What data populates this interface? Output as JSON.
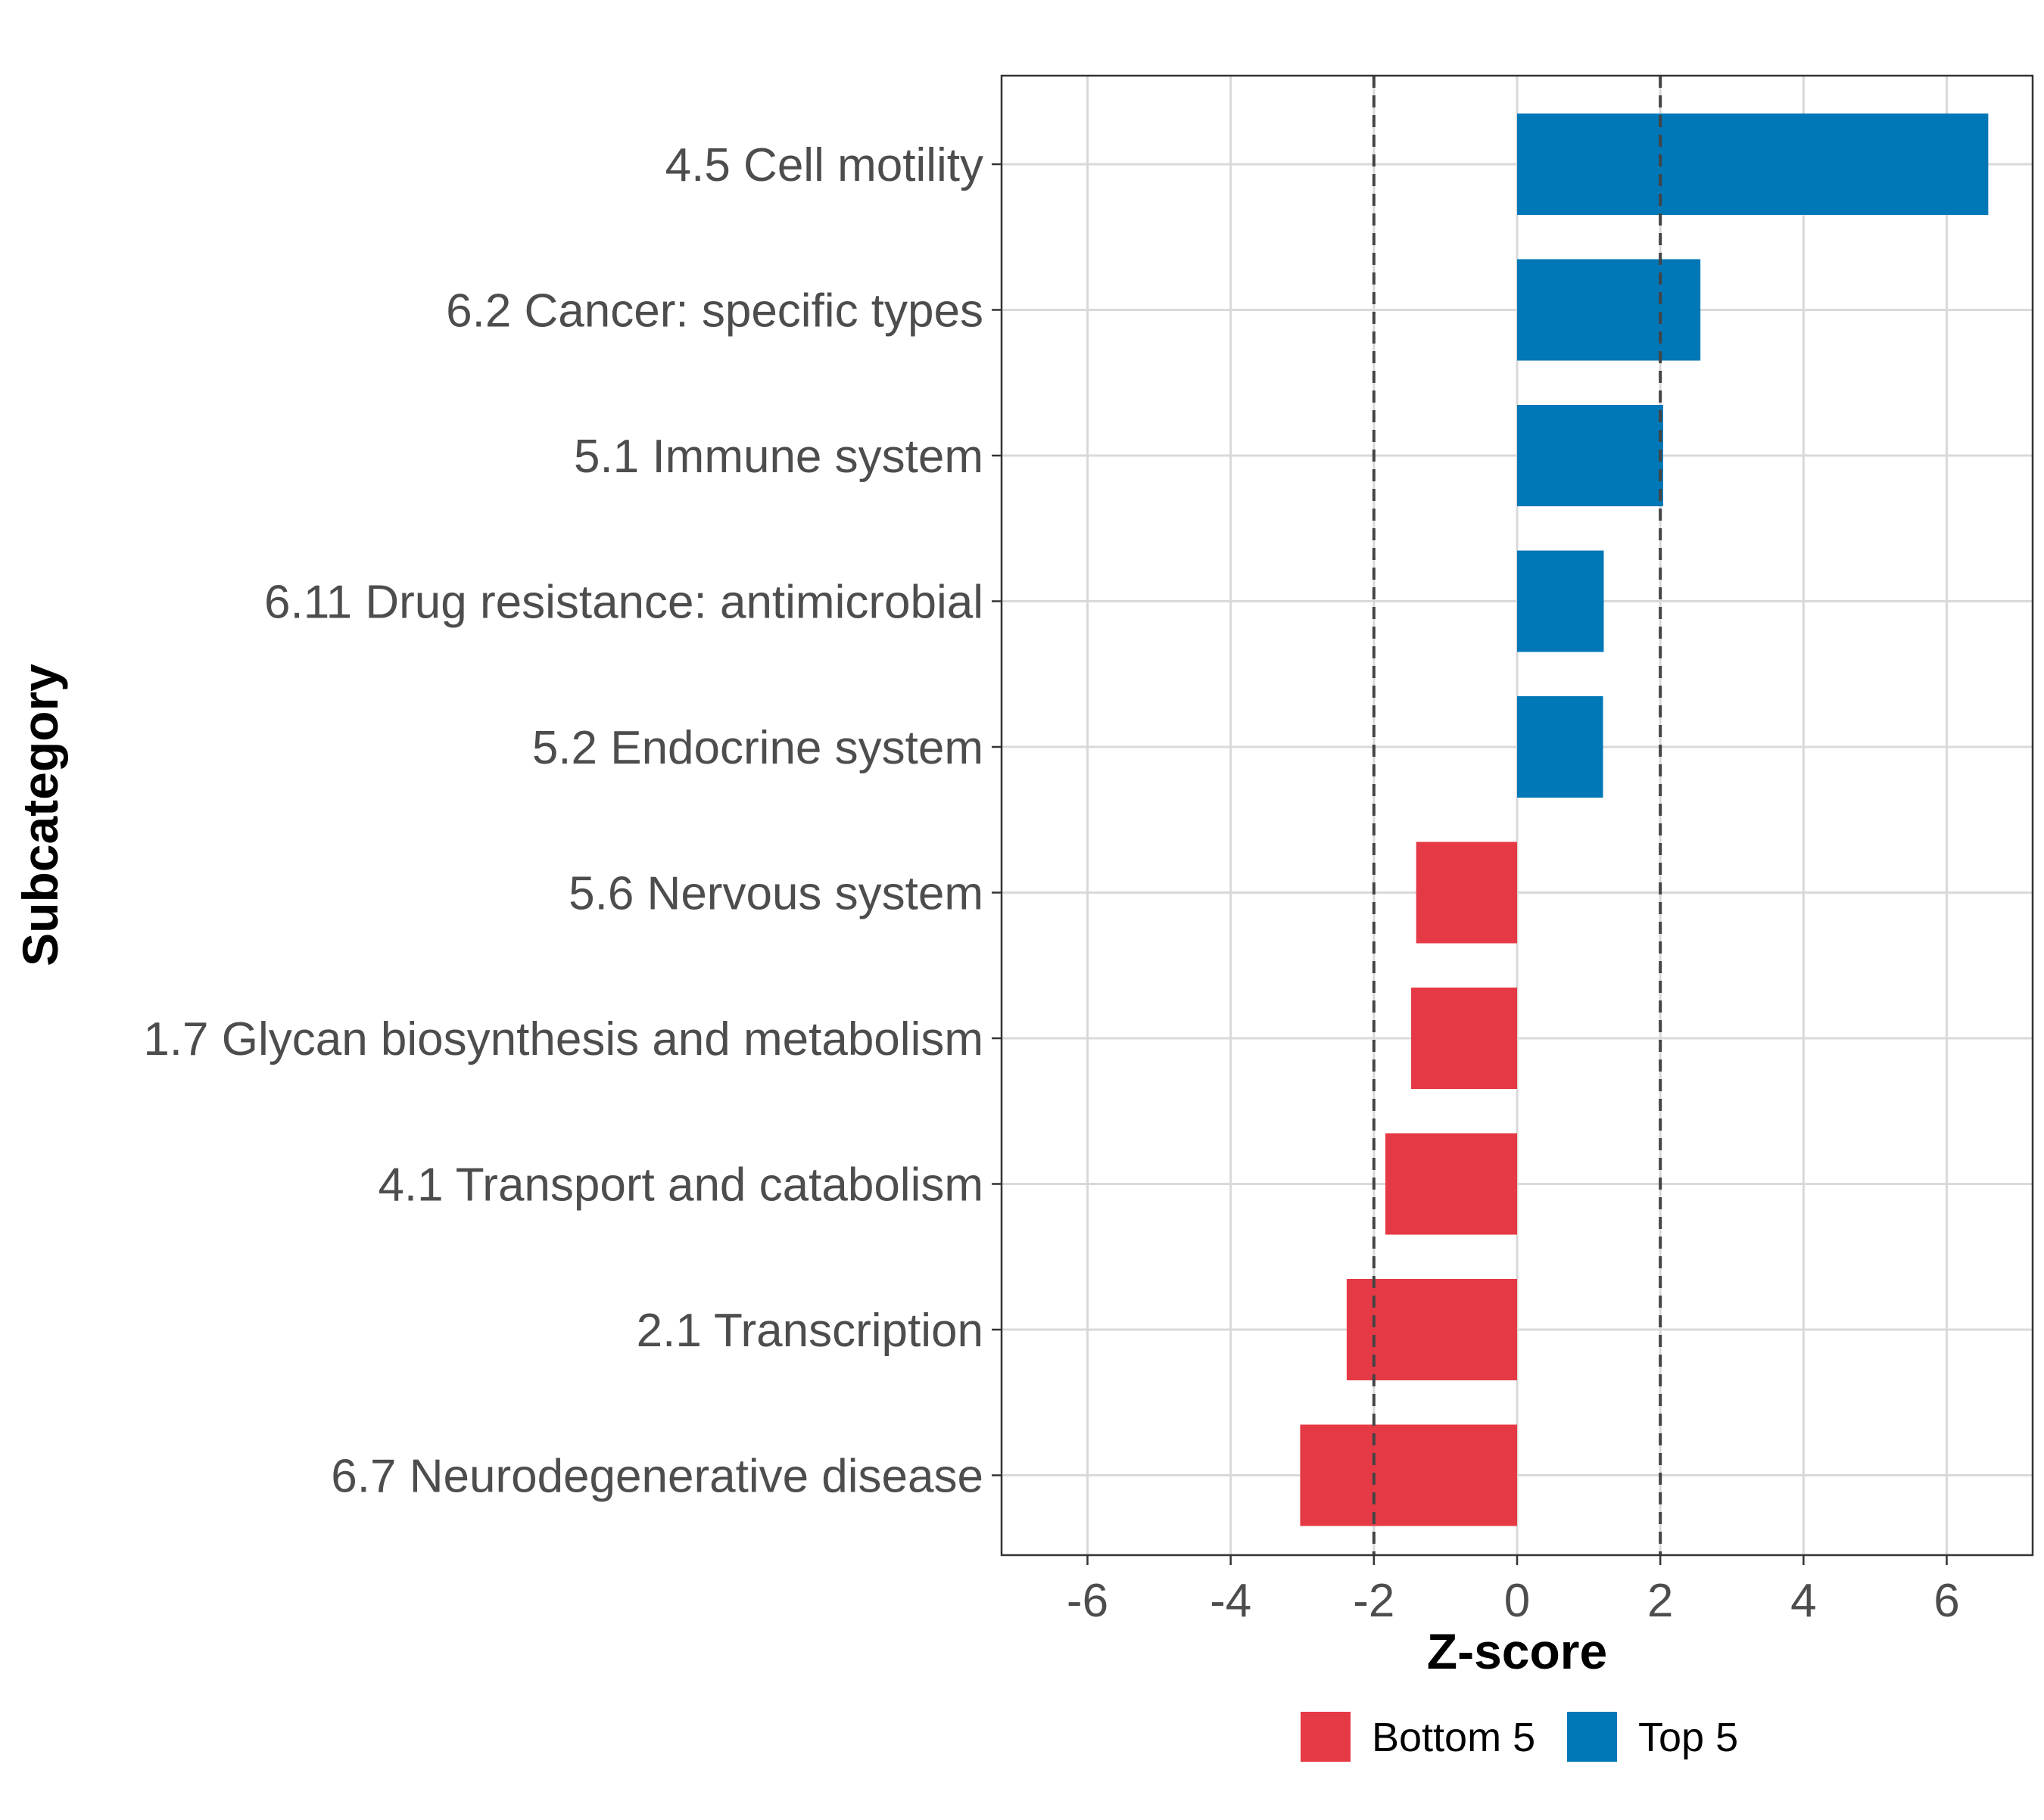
{
  "chart_data": {
    "type": "bar",
    "orientation": "horizontal",
    "title": "",
    "xlabel": "Z-score",
    "ylabel": "Subcategory",
    "xlim": [
      -7.2,
      7.2
    ],
    "xticks": [
      -6,
      -4,
      -2,
      0,
      2,
      4,
      6
    ],
    "xtick_labels": [
      "-6",
      "-4",
      "-2",
      "0",
      "2",
      "4",
      "6"
    ],
    "reference_lines": [
      -2,
      2
    ],
    "grid": true,
    "categories": [
      "4.5 Cell motility",
      "6.2 Cancer: specific types",
      "5.1 Immune system",
      "6.11 Drug resistance: antimicrobial",
      "5.2 Endocrine system",
      "5.6 Nervous system",
      "1.7 Glycan biosynthesis and metabolism",
      "4.1 Transport and catabolism",
      "2.1 Transcription",
      "6.7 Neurodegenerative disease"
    ],
    "values": [
      6.58,
      2.56,
      2.04,
      1.21,
      1.2,
      -1.41,
      -1.48,
      -1.84,
      -2.38,
      -3.03
    ],
    "groups": [
      "Top 5",
      "Top 5",
      "Top 5",
      "Top 5",
      "Top 5",
      "Bottom 5",
      "Bottom 5",
      "Bottom 5",
      "Bottom 5",
      "Bottom 5"
    ],
    "legend": {
      "position": "bottom",
      "entries": [
        {
          "label": "Bottom 5",
          "color": "#E63946"
        },
        {
          "label": "Top 5",
          "color": "#0077B6"
        }
      ]
    }
  }
}
